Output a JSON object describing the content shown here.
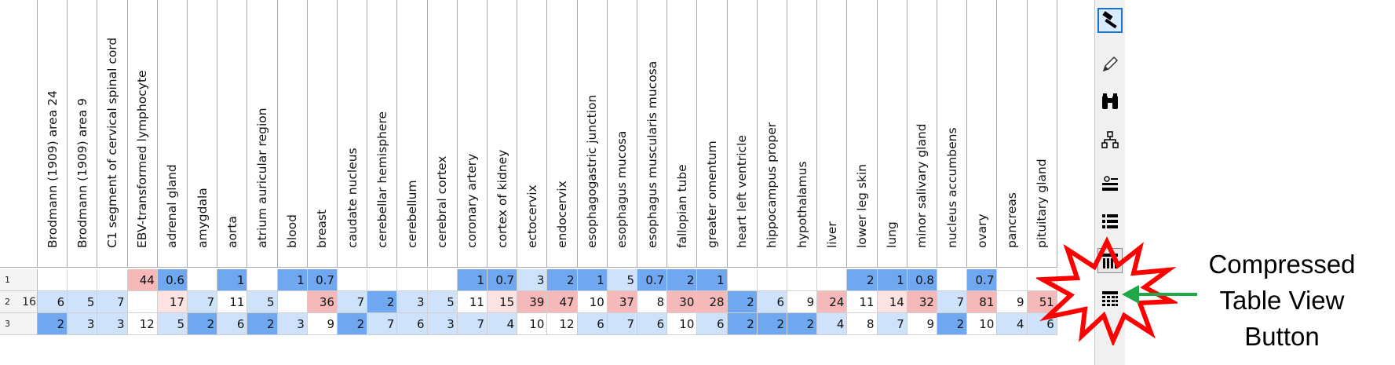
{
  "columns": [
    "Brodmann (1909) area 24",
    "Brodmann (1909) area 9",
    "C1 segment of cervical spinal cord",
    "EBV-transformed lymphocyte",
    "adrenal gland",
    "amygdala",
    "aorta",
    "atrium auricular region",
    "blood",
    "breast",
    "caudate nucleus",
    "cerebellar hemisphere",
    "cerebellum",
    "cerebral cortex",
    "coronary artery",
    "cortex of kidney",
    "ectocervix",
    "endocervix",
    "esophagogastric junction",
    "esophagus mucosa",
    "esophagus muscularis mucosa",
    "fallopian tube",
    "greater omentum",
    "heart left ventricle",
    "hippocampus proper",
    "hypothalamus",
    "liver",
    "lower leg skin",
    "lung",
    "minor salivary gland",
    "nucleus accumbens",
    "ovary",
    "pancreas",
    "pituitary gland"
  ],
  "rows": [
    {
      "label": "1",
      "values": [
        "",
        "",
        "",
        "44",
        "0.6",
        "",
        "1",
        "",
        "1",
        "0.7",
        "",
        "",
        "",
        "",
        "1",
        "0.7",
        "3",
        "2",
        "1",
        "5",
        "0.7",
        "2",
        "1",
        "",
        "",
        "",
        "",
        "2",
        "1",
        "0.8",
        "",
        "0.7",
        "",
        ""
      ]
    },
    {
      "label": "2",
      "values": [
        "6",
        "5",
        "7",
        "",
        "17",
        "7",
        "11",
        "5",
        "",
        "36",
        "7",
        "2",
        "3",
        "5",
        "11",
        "15",
        "39",
        "47",
        "10",
        "37",
        "8",
        "30",
        "28",
        "2",
        "6",
        "9",
        "24",
        "11",
        "14",
        "32",
        "7",
        "81",
        "9",
        "51"
      ]
    },
    {
      "label": "3",
      "values": [
        "2",
        "3",
        "3",
        "12",
        "5",
        "2",
        "6",
        "2",
        "3",
        "9",
        "2",
        "7",
        "6",
        "3",
        "7",
        "4",
        "10",
        "12",
        "6",
        "7",
        "6",
        "10",
        "6",
        "2",
        "2",
        "2",
        "4",
        "8",
        "7",
        "9",
        "2",
        "10",
        "4",
        "6"
      ]
    }
  ],
  "row_clipped_text": [
    "",
    "16",
    ""
  ],
  "colors": {
    "blue": "#6fa8f0",
    "light_blue": "#cfe2fb",
    "pink": "#f6b9b9",
    "light_pink": "#fde2e2",
    "annotation_burst": "#ff0000",
    "annotation_arrow": "#1fa84a"
  },
  "toolbar": [
    {
      "icon": "hammer-icon"
    },
    {
      "icon": "pencil-icon"
    },
    {
      "icon": "binoculars-icon"
    },
    {
      "icon": "hierarchy-icon"
    },
    {
      "icon": "table-settings-icon"
    },
    {
      "icon": "list-view-icon"
    },
    {
      "icon": "compressed-table-view-icon"
    },
    {
      "icon": "grid-view-icon"
    }
  ],
  "annotation": {
    "line1": "Compressed",
    "line2": "Table View",
    "line3": "Button"
  }
}
